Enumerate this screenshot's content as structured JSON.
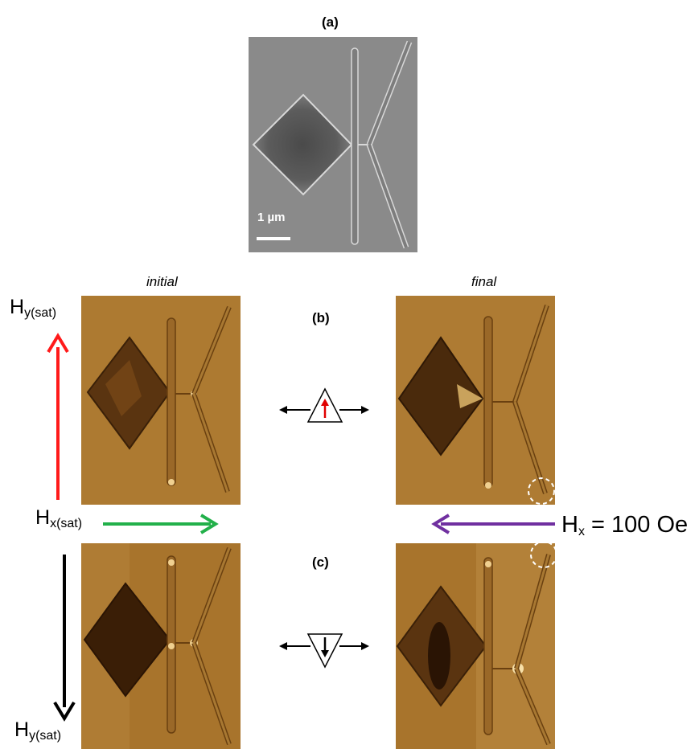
{
  "panels": {
    "a": "(a)",
    "b": "(b)",
    "c": "(c)"
  },
  "columns": {
    "initial": "initial",
    "final": "final"
  },
  "scale_bar": "1 µm",
  "fields": {
    "hy_top": {
      "main": "H",
      "sub": "y(sat)"
    },
    "hx_sat": {
      "main": "H",
      "sub": "x(sat)"
    },
    "hx_100": {
      "main": "H",
      "sub": "x",
      "rest": " = 100 Oe"
    },
    "hy_bottom": {
      "main": "H",
      "sub": "y(sat)"
    }
  },
  "colors": {
    "red_arrow": "#ff1a1a",
    "green_arrow": "#22b04a",
    "purple_arrow": "#7030a0",
    "black_arrow": "#000000",
    "mfm_base": "#a8742c",
    "sem_base": "#8a8a8a"
  }
}
